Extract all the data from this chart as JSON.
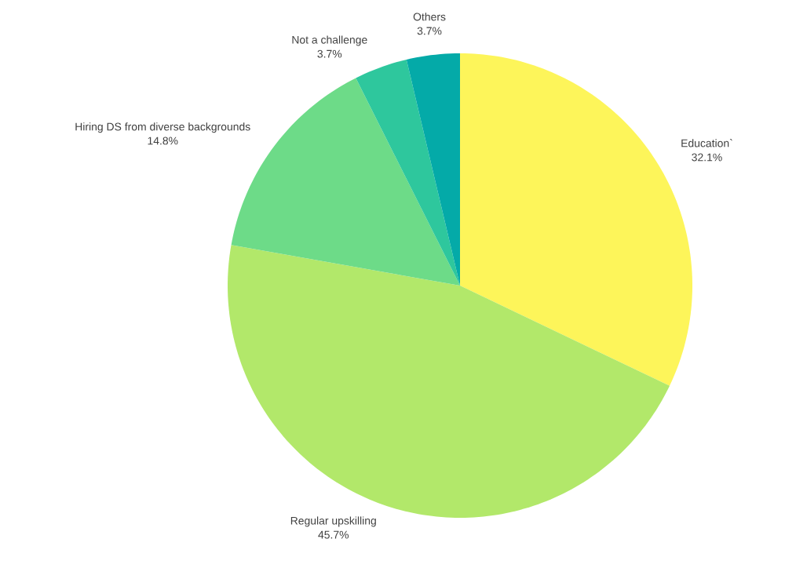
{
  "chart_data": {
    "type": "pie",
    "categories": [
      "Education`",
      "Regular upskilling",
      "Hiring DS from diverse backgrounds",
      "Not a challenge",
      "Others"
    ],
    "values": [
      32.1,
      45.7,
      14.8,
      3.7,
      3.7
    ],
    "value_labels": [
      "32.1%",
      "45.7%",
      "14.8%",
      "3.7%",
      "3.7%"
    ],
    "colors": [
      "#fdf55a",
      "#b2e86a",
      "#6ddb88",
      "#2ec79d",
      "#04aaa8"
    ]
  }
}
